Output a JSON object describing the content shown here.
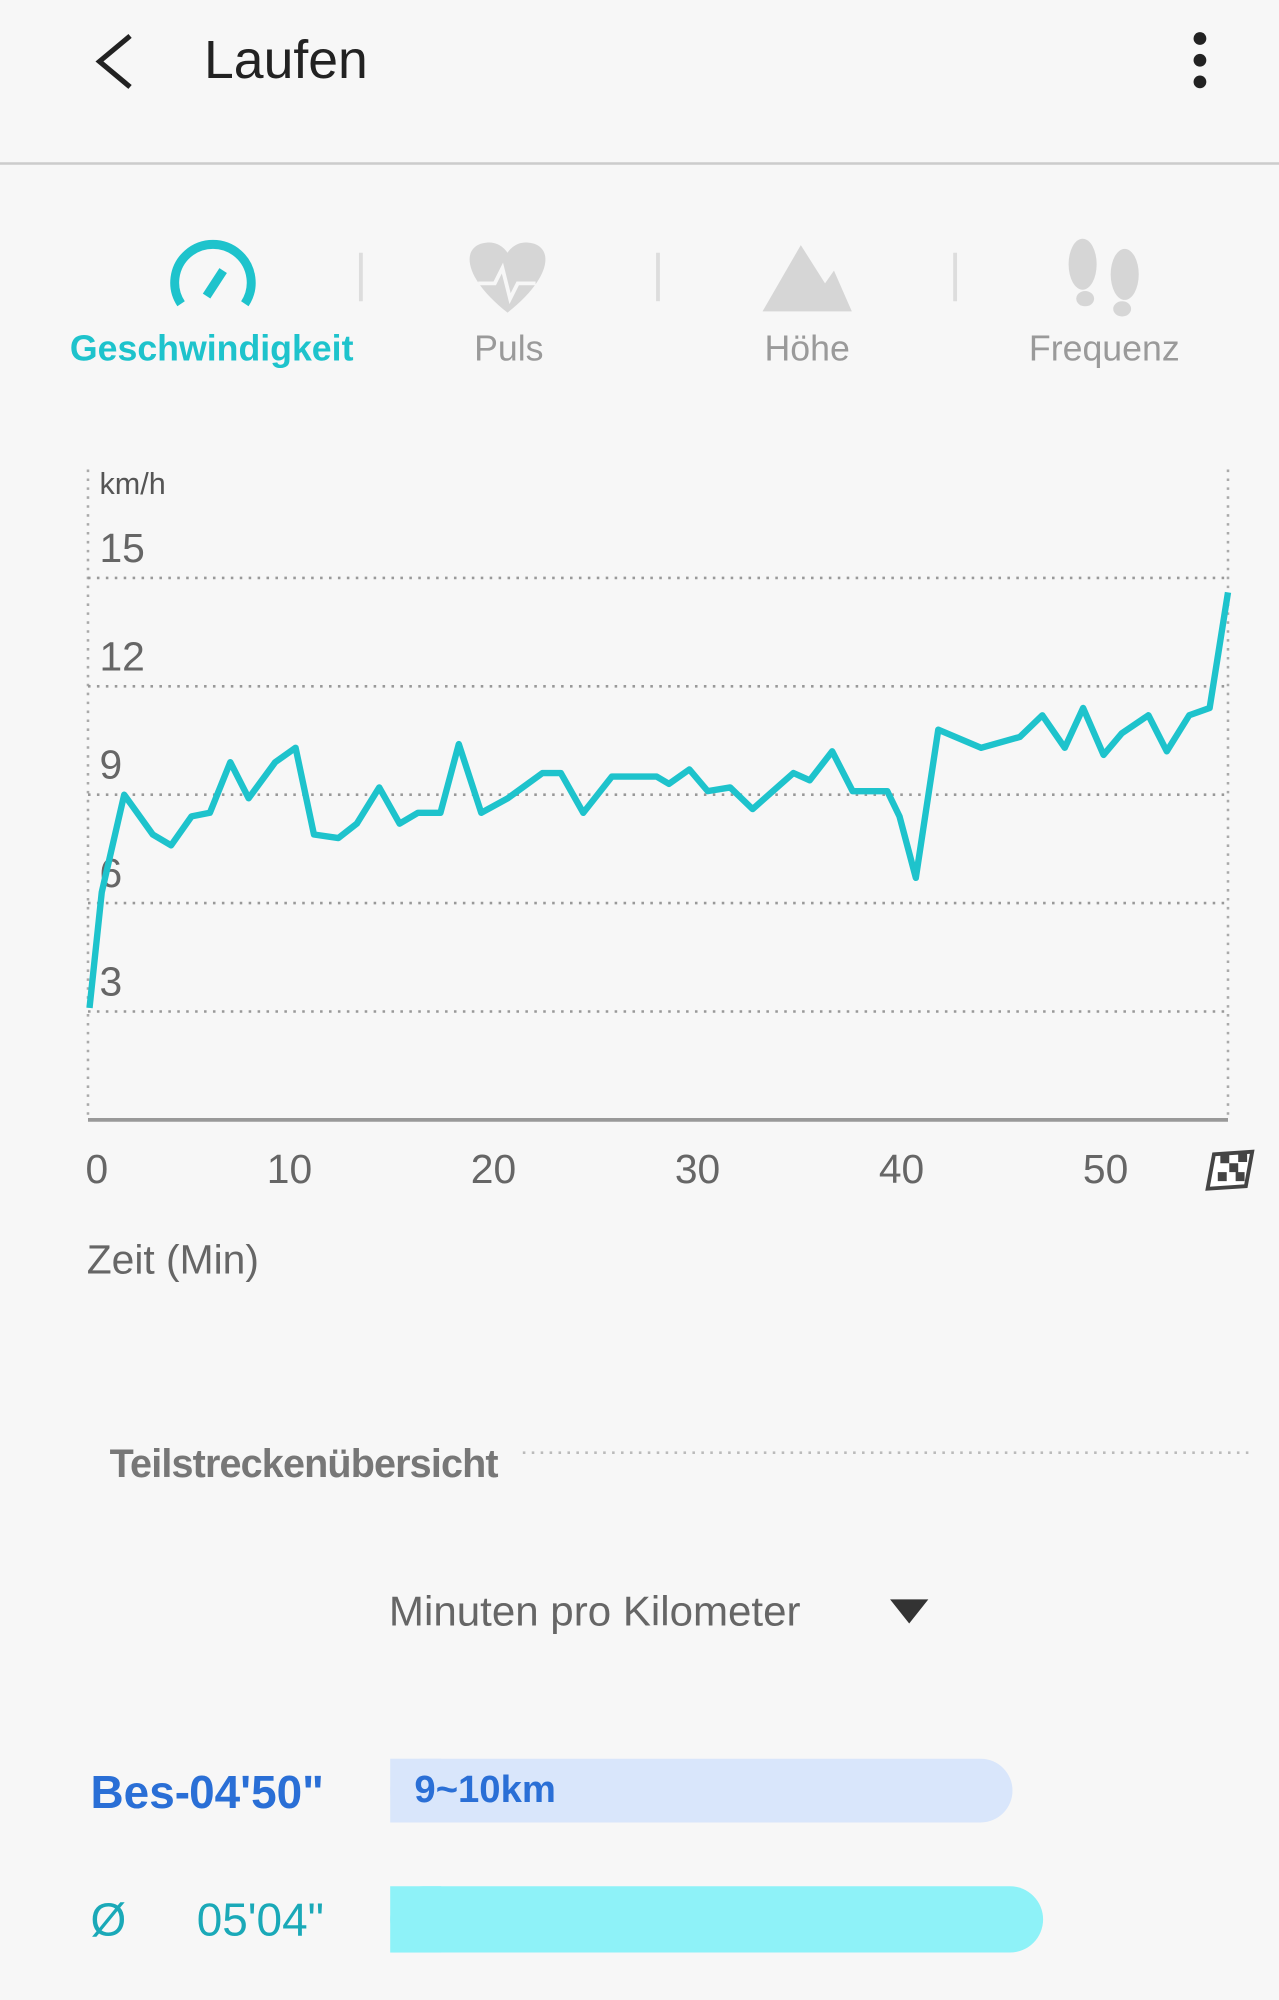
{
  "header": {
    "title": "Laufen"
  },
  "tabs": [
    {
      "label": "Geschwindigkeit"
    },
    {
      "label": "Puls"
    },
    {
      "label": "Höhe"
    },
    {
      "label": "Frequenz"
    }
  ],
  "chart_data": {
    "type": "line",
    "y_label": "km/h",
    "x_label": "Zeit (Min)",
    "color": "#1ec3cc",
    "xlim": [
      0,
      56
    ],
    "ylim": [
      0,
      18
    ],
    "xticks": [
      0,
      10,
      20,
      30,
      40,
      50
    ],
    "yticks": [
      3,
      6,
      9,
      12,
      15
    ],
    "grid": true,
    "x": [
      0.2,
      0.8,
      1.9,
      3.3,
      4.2,
      5.2,
      6.1,
      7.1,
      8.0,
      9.3,
      10.3,
      11.2,
      12.4,
      13.3,
      14.4,
      15.4,
      16.3,
      17.4,
      18.3,
      19.4,
      20.7,
      22.4,
      23.3,
      24.4,
      25.8,
      28.0,
      28.6,
      29.6,
      30.5,
      31.6,
      32.7,
      34.7,
      35.5,
      36.6,
      37.6,
      39.3,
      39.9,
      40.7,
      41.8,
      43.9,
      45.8,
      46.9,
      48.0,
      48.9,
      49.9,
      50.8,
      52.1,
      53.0,
      54.1,
      55.1,
      56.0
    ],
    "y": [
      3.1,
      6.3,
      9.0,
      7.9,
      7.6,
      8.4,
      8.5,
      9.9,
      8.9,
      9.9,
      10.3,
      7.9,
      7.8,
      8.2,
      9.2,
      8.2,
      8.5,
      8.5,
      10.4,
      8.5,
      8.9,
      9.6,
      9.6,
      8.5,
      9.5,
      9.5,
      9.3,
      9.7,
      9.1,
      9.2,
      8.6,
      9.6,
      9.4,
      10.2,
      9.1,
      9.1,
      8.4,
      6.7,
      10.8,
      10.3,
      10.6,
      11.2,
      10.3,
      11.4,
      10.1,
      10.7,
      11.2,
      10.2,
      11.2,
      11.4,
      14.6
    ]
  },
  "splits": {
    "title": "Teilstreckenübersicht",
    "unit_select": "Minuten pro Kilometer",
    "rows": [
      {
        "label": "Bes-",
        "time": "04'50\"",
        "segment": "9~10km"
      },
      {
        "label": "Ø",
        "time": "05'04\""
      }
    ]
  }
}
